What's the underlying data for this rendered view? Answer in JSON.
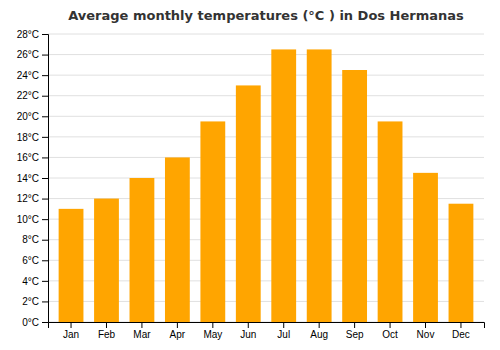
{
  "chart_data": {
    "type": "bar",
    "title": "Average monthly temperatures (°C ) in Dos Hermanas",
    "categories": [
      "Jan",
      "Feb",
      "Mar",
      "Apr",
      "May",
      "Jun",
      "Jul",
      "Aug",
      "Sep",
      "Oct",
      "Nov",
      "Dec"
    ],
    "values": [
      11,
      12,
      14,
      16,
      19.5,
      23,
      26.5,
      26.5,
      24.5,
      19.5,
      14.5,
      11.5
    ],
    "color": "#FFA500",
    "ylim": [
      0,
      28
    ],
    "yticks": [
      {
        "value": 0,
        "label": "0°C"
      },
      {
        "value": 2,
        "label": "2°C"
      },
      {
        "value": 4,
        "label": "4°C"
      },
      {
        "value": 6,
        "label": "6°C"
      },
      {
        "value": 8,
        "label": "8°C"
      },
      {
        "value": 10,
        "label": "10°C"
      },
      {
        "value": 12,
        "label": "12°C"
      },
      {
        "value": 14,
        "label": "14°C"
      },
      {
        "value": 16,
        "label": "16°C"
      },
      {
        "value": 18,
        "label": "18°C"
      },
      {
        "value": 20,
        "label": "20°C"
      },
      {
        "value": 22,
        "label": "22°C"
      },
      {
        "value": 24,
        "label": "24°C"
      },
      {
        "value": 26,
        "label": "26°C"
      },
      {
        "value": 28,
        "label": "28°C"
      }
    ],
    "grid": true
  }
}
